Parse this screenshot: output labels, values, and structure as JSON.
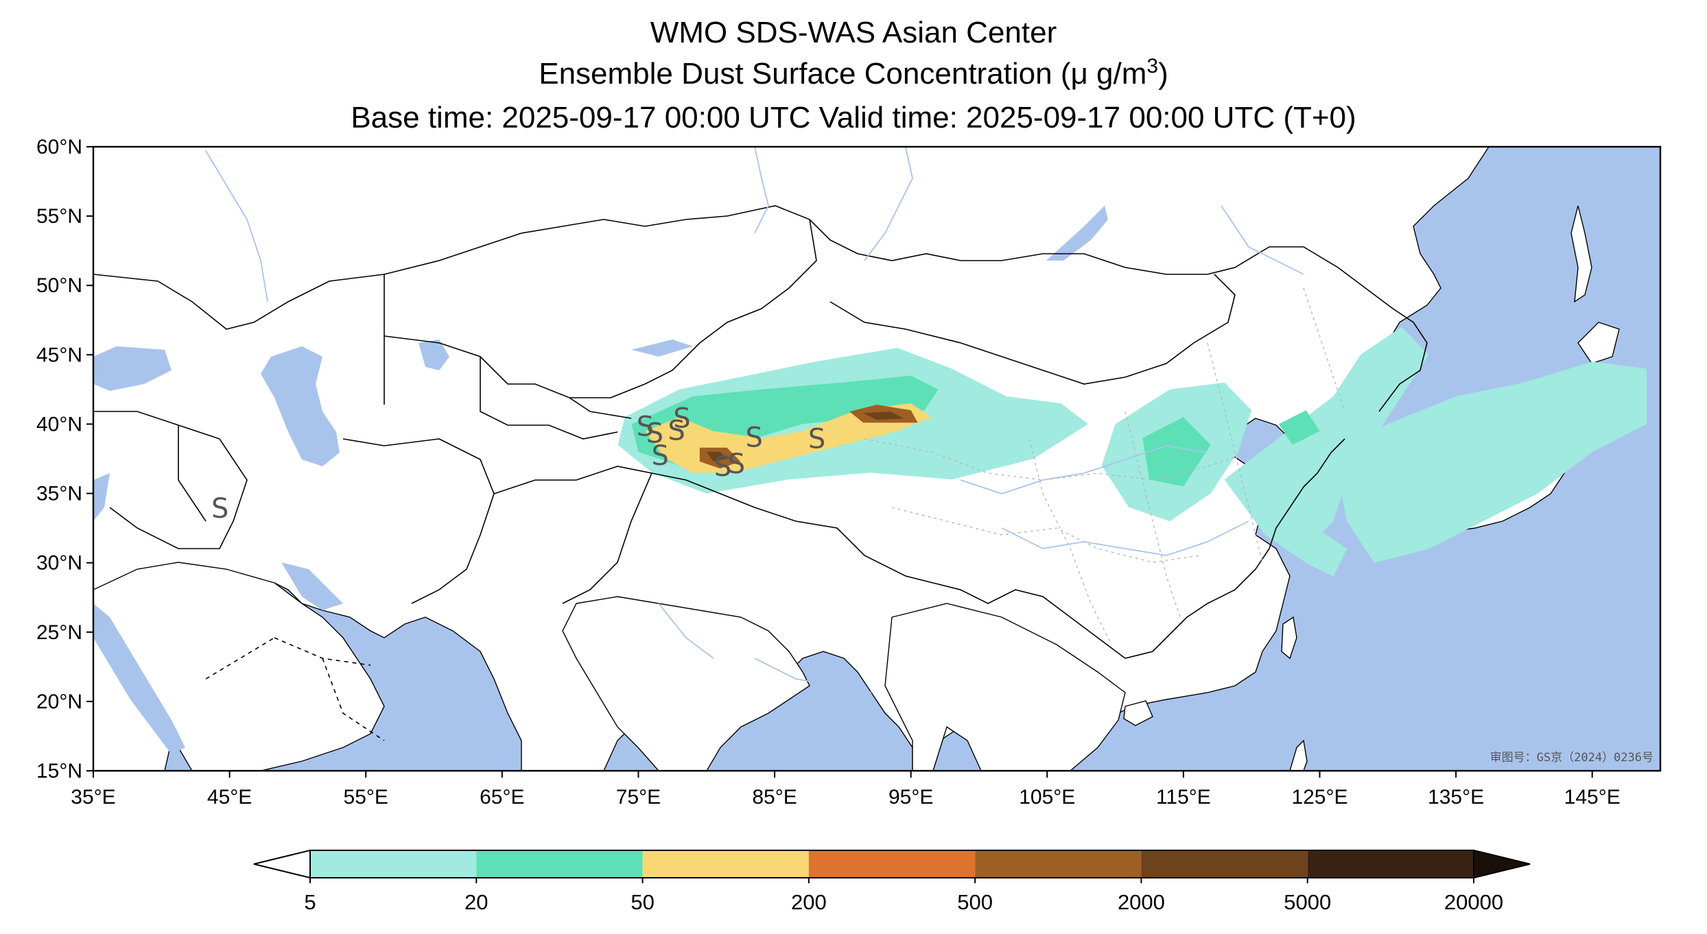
{
  "title": {
    "line1": "WMO SDS-WAS Asian Center",
    "line2_prefix": "Ensemble Dust Surface Concentration (",
    "line2_unit": "μ g/m",
    "line2_exp": "3",
    "line2_suffix": ")",
    "line3": "Base time: 2025-09-17 00:00 UTC Valid time: 2025-09-17 00:00 UTC (T+0)"
  },
  "map": {
    "lon_range": [
      35,
      150
    ],
    "lat_range": [
      15,
      60
    ],
    "ocean_color": "#a9c4ec",
    "land_color": "#ffffff",
    "lon_ticks": [
      "35°E",
      "45°E",
      "55°E",
      "65°E",
      "75°E",
      "85°E",
      "95°E",
      "105°E",
      "115°E",
      "125°E",
      "135°E",
      "145°E"
    ],
    "lat_ticks": [
      "60°N",
      "55°N",
      "50°N",
      "45°N",
      "40°N",
      "35°N",
      "30°N",
      "25°N",
      "20°N",
      "15°N"
    ],
    "approval_stamp": "审图号：GS京（2024）0236号",
    "dust_source_marker": "S"
  },
  "colorbar": {
    "levels": [
      "5",
      "20",
      "50",
      "200",
      "500",
      "2000",
      "5000",
      "20000"
    ],
    "colors": [
      "#a0eadf",
      "#5de0b6",
      "#f8d874",
      "#dd732f",
      "#9e5f24",
      "#6c431d",
      "#3a2212"
    ],
    "under_color": "#ffffff",
    "over_color": "#1a1007",
    "extend": "both"
  }
}
